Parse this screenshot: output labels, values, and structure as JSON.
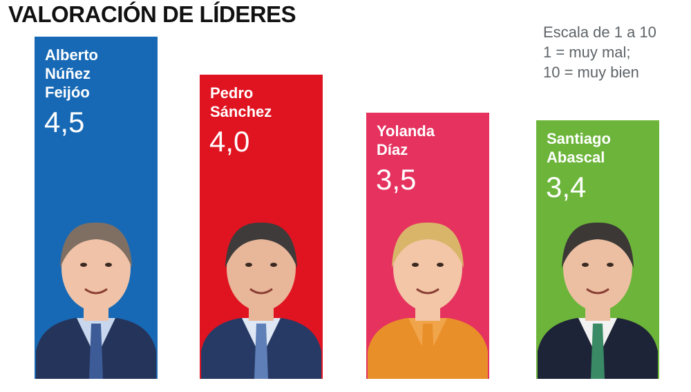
{
  "title": "VALORACIÓN DE LÍDERES",
  "scale_note": [
    "Escala de 1 a 10",
    "1 = muy mal;",
    "10 = muy bien"
  ],
  "chart_data": {
    "type": "bar",
    "title": "VALORACIÓN DE LÍDERES",
    "categories": [
      "Alberto Núñez Feijóo",
      "Pedro Sánchez",
      "Yolanda Díaz",
      "Santiago Abascal"
    ],
    "values": [
      4.5,
      4.0,
      3.5,
      3.4
    ],
    "value_labels": [
      "4,5",
      "4,0",
      "3,5",
      "3,4"
    ],
    "name_lines": [
      [
        "Alberto",
        "Núñez",
        "Feijóo"
      ],
      [
        "Pedro",
        "Sánchez"
      ],
      [
        "Yolanda",
        "Díaz"
      ],
      [
        "Santiago",
        "Abascal"
      ]
    ],
    "colors": [
      "#1769b5",
      "#e01421",
      "#e5325f",
      "#6cb53a"
    ],
    "photos": [
      "portrait-feijoo",
      "portrait-sanchez",
      "portrait-diaz",
      "portrait-abascal"
    ],
    "scale": {
      "min": 1,
      "max": 10
    },
    "grid": false,
    "legend": "none"
  }
}
